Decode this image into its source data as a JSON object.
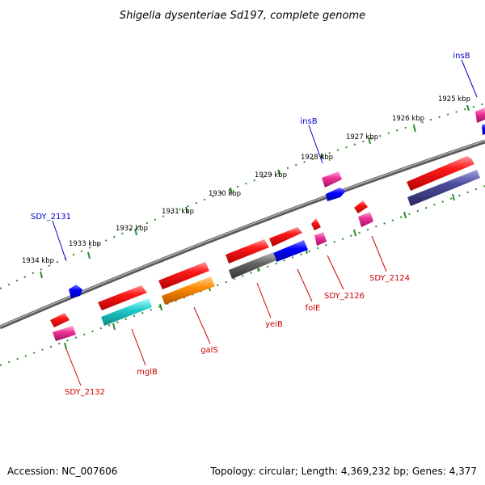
{
  "title": "Shigella dysenteriae Sd197, complete genome",
  "footer": {
    "accession": "Accession: NC_007606",
    "topology": "Topology: circular; Length: 4,369,232 bp; Genes: 4,377"
  },
  "ruler": {
    "unit": "kbp",
    "ticks": [
      "1925 kbp",
      "1926 kbp",
      "1927 kbp",
      "1928 kbp",
      "1929 kbp",
      "1930 kbp",
      "1931 kbp",
      "1932 kbp",
      "1933 kbp",
      "1934 kbp"
    ]
  },
  "colors": {
    "backbone": "#808080",
    "tick": "#2e8b2e",
    "label_top": "#0000cc",
    "label_bottom": "#cc0000",
    "gene_red": "#ff0000",
    "gene_magenta": "#ee3399",
    "gene_blue": "#0000ff",
    "gene_cyan": "#22cccc",
    "gene_orange": "#ff8c00",
    "gene_gray": "#666666",
    "gene_slate": "#4a4a9a"
  },
  "genes_outer": [
    {
      "label": "insB",
      "color": "gene_magenta"
    },
    {
      "label": "insB",
      "color": "gene_magenta"
    },
    {
      "label": "SDY_2131",
      "color": "gene_blue"
    }
  ],
  "genes_inner": [
    {
      "label": "SDY_2124",
      "color": "gene_red"
    },
    {
      "label": "SDY_2126",
      "color": "gene_magenta"
    },
    {
      "label": "folE",
      "color": "gene_blue"
    },
    {
      "label": "yeiB",
      "color": "gene_gray"
    },
    {
      "label": "galS",
      "color": "gene_orange"
    },
    {
      "label": "mglB",
      "color": "gene_cyan"
    },
    {
      "label": "SDY_2132",
      "color": "gene_magenta"
    }
  ]
}
